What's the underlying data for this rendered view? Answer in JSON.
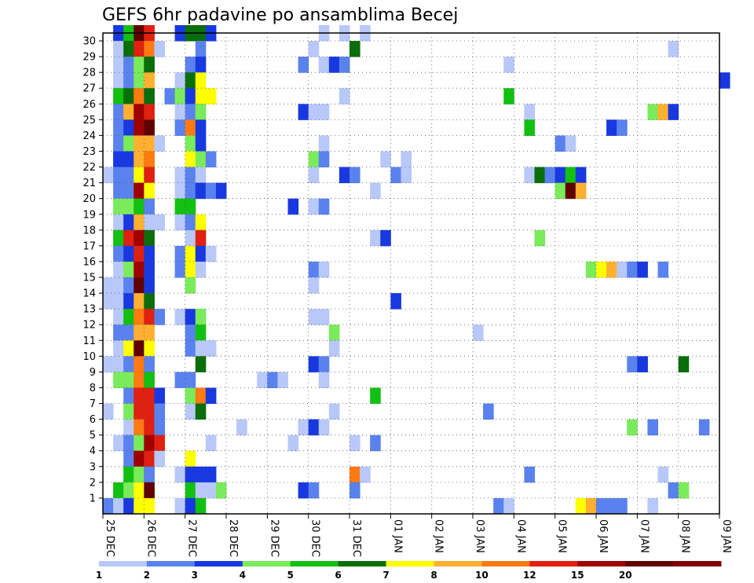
{
  "chart_data": {
    "type": "heatmap",
    "title": "GEFS 6hr padavine po ansamblima Becej",
    "xlabel": "",
    "ylabel": "",
    "x_ticks": [
      "25 DEC",
      "26 DEC",
      "27 DEC",
      "28 DEC",
      "29 DEC",
      "30 DEC",
      "31 DEC",
      "01 JAN",
      "02 JAN",
      "03 JAN",
      "04 JAN",
      "05 JAN",
      "06 JAN",
      "07 JAN",
      "08 JAN",
      "09 JAN"
    ],
    "y_ticks": [
      "1",
      "2",
      "3",
      "4",
      "5",
      "6",
      "7",
      "8",
      "9",
      "10",
      "11",
      "12",
      "13",
      "14",
      "15",
      "16",
      "17",
      "18",
      "19",
      "20",
      "21",
      "22",
      "23",
      "24",
      "25",
      "26",
      "27",
      "28",
      "29",
      "30"
    ],
    "xlim": [
      0,
      60
    ],
    "ylim": [
      0,
      30
    ],
    "grid": true,
    "colorbar": {
      "levels": [
        "1",
        "2",
        "3",
        "4",
        "5",
        "6",
        "7",
        "8",
        "10",
        "12",
        "15",
        "20"
      ],
      "colors": [
        "#b8c8f8",
        "#5a82ee",
        "#1838e0",
        "#7aeb5a",
        "#12c012",
        "#0a6e0a",
        "#ffff00",
        "#ffb030",
        "#ff7a10",
        "#e02010",
        "#a00000",
        "#600000",
        "#800008"
      ]
    },
    "cells": [
      [
        1,
        30,
        2
      ],
      [
        2,
        30,
        4
      ],
      [
        3,
        30,
        11
      ],
      [
        4,
        30,
        9
      ],
      [
        7,
        30,
        2
      ],
      [
        8,
        30,
        5
      ],
      [
        9,
        30,
        5
      ],
      [
        10,
        30,
        2
      ],
      [
        21,
        30,
        0
      ],
      [
        23,
        30,
        0
      ],
      [
        25,
        30,
        0
      ],
      [
        1,
        29,
        0
      ],
      [
        2,
        29,
        5
      ],
      [
        3,
        29,
        9
      ],
      [
        4,
        29,
        8
      ],
      [
        5,
        29,
        0
      ],
      [
        9,
        29,
        1
      ],
      [
        20,
        29,
        0
      ],
      [
        24,
        29,
        5
      ],
      [
        55,
        29,
        0
      ],
      [
        1,
        28,
        0
      ],
      [
        2,
        28,
        1
      ],
      [
        3,
        28,
        3
      ],
      [
        4,
        28,
        5
      ],
      [
        8,
        28,
        1
      ],
      [
        9,
        28,
        2
      ],
      [
        19,
        28,
        1
      ],
      [
        21,
        28,
        0
      ],
      [
        22,
        28,
        2
      ],
      [
        23,
        28,
        1
      ],
      [
        39,
        28,
        0
      ],
      [
        1,
        27,
        0
      ],
      [
        2,
        27,
        1
      ],
      [
        3,
        27,
        3
      ],
      [
        4,
        27,
        7
      ],
      [
        7,
        27,
        0
      ],
      [
        8,
        27,
        5
      ],
      [
        9,
        27,
        6
      ],
      [
        60,
        27,
        2
      ],
      [
        1,
        26,
        4
      ],
      [
        2,
        26,
        5
      ],
      [
        3,
        26,
        8
      ],
      [
        4,
        26,
        5
      ],
      [
        6,
        26,
        1
      ],
      [
        7,
        26,
        3
      ],
      [
        8,
        26,
        2
      ],
      [
        9,
        26,
        6
      ],
      [
        10,
        26,
        6
      ],
      [
        23,
        26,
        0
      ],
      [
        39,
        26,
        4
      ],
      [
        1,
        25,
        1
      ],
      [
        2,
        25,
        7
      ],
      [
        3,
        25,
        10
      ],
      [
        4,
        25,
        9
      ],
      [
        7,
        25,
        0
      ],
      [
        8,
        25,
        1
      ],
      [
        9,
        25,
        3
      ],
      [
        19,
        25,
        2
      ],
      [
        20,
        25,
        0
      ],
      [
        21,
        25,
        0
      ],
      [
        41,
        25,
        0
      ],
      [
        53,
        25,
        3
      ],
      [
        54,
        25,
        7
      ],
      [
        55,
        25,
        2
      ],
      [
        1,
        24,
        1
      ],
      [
        2,
        24,
        2
      ],
      [
        3,
        24,
        10
      ],
      [
        4,
        24,
        11
      ],
      [
        7,
        24,
        1
      ],
      [
        8,
        24,
        8
      ],
      [
        9,
        24,
        2
      ],
      [
        41,
        24,
        4
      ],
      [
        49,
        24,
        2
      ],
      [
        50,
        24,
        1
      ],
      [
        1,
        23,
        1
      ],
      [
        2,
        23,
        3
      ],
      [
        3,
        23,
        7
      ],
      [
        4,
        23,
        7
      ],
      [
        5,
        23,
        0
      ],
      [
        8,
        23,
        3
      ],
      [
        9,
        23,
        2
      ],
      [
        21,
        23,
        0
      ],
      [
        44,
        23,
        1
      ],
      [
        45,
        23,
        0
      ],
      [
        1,
        22,
        2
      ],
      [
        2,
        22,
        2
      ],
      [
        3,
        22,
        7
      ],
      [
        4,
        22,
        8
      ],
      [
        8,
        22,
        6
      ],
      [
        9,
        22,
        3
      ],
      [
        10,
        22,
        1
      ],
      [
        20,
        22,
        3
      ],
      [
        21,
        22,
        1
      ],
      [
        27,
        22,
        0
      ],
      [
        29,
        22,
        0
      ],
      [
        0,
        21,
        0
      ],
      [
        1,
        21,
        1
      ],
      [
        2,
        21,
        1
      ],
      [
        3,
        21,
        6
      ],
      [
        4,
        21,
        9
      ],
      [
        7,
        21,
        0
      ],
      [
        8,
        21,
        1
      ],
      [
        9,
        21,
        0
      ],
      [
        20,
        21,
        0
      ],
      [
        23,
        21,
        2
      ],
      [
        24,
        21,
        1
      ],
      [
        28,
        21,
        1
      ],
      [
        29,
        21,
        0
      ],
      [
        41,
        21,
        0
      ],
      [
        42,
        21,
        5
      ],
      [
        43,
        21,
        1
      ],
      [
        44,
        21,
        2
      ],
      [
        45,
        21,
        4
      ],
      [
        46,
        21,
        2
      ],
      [
        1,
        20,
        1
      ],
      [
        2,
        20,
        1
      ],
      [
        3,
        20,
        10
      ],
      [
        4,
        20,
        6
      ],
      [
        7,
        20,
        0
      ],
      [
        8,
        20,
        1
      ],
      [
        9,
        20,
        2
      ],
      [
        10,
        20,
        1
      ],
      [
        11,
        20,
        2
      ],
      [
        26,
        20,
        0
      ],
      [
        44,
        20,
        3
      ],
      [
        45,
        20,
        11
      ],
      [
        46,
        20,
        7
      ],
      [
        1,
        19,
        3
      ],
      [
        2,
        19,
        3
      ],
      [
        3,
        19,
        4
      ],
      [
        4,
        19,
        1
      ],
      [
        7,
        19,
        4
      ],
      [
        8,
        19,
        4
      ],
      [
        18,
        19,
        2
      ],
      [
        20,
        19,
        0
      ],
      [
        21,
        19,
        1
      ],
      [
        1,
        18,
        0
      ],
      [
        2,
        18,
        2
      ],
      [
        3,
        18,
        7
      ],
      [
        4,
        18,
        0
      ],
      [
        5,
        18,
        0
      ],
      [
        7,
        18,
        0
      ],
      [
        8,
        18,
        1
      ],
      [
        9,
        18,
        6
      ],
      [
        1,
        17,
        4
      ],
      [
        2,
        17,
        9
      ],
      [
        3,
        17,
        10
      ],
      [
        4,
        17,
        5
      ],
      [
        8,
        17,
        0
      ],
      [
        9,
        17,
        9
      ],
      [
        26,
        17,
        0
      ],
      [
        27,
        17,
        2
      ],
      [
        42,
        17,
        3
      ],
      [
        1,
        16,
        1
      ],
      [
        2,
        16,
        2
      ],
      [
        3,
        16,
        9
      ],
      [
        4,
        16,
        2
      ],
      [
        7,
        16,
        1
      ],
      [
        8,
        16,
        6
      ],
      [
        9,
        16,
        2
      ],
      [
        10,
        16,
        0
      ],
      [
        1,
        15,
        0
      ],
      [
        2,
        15,
        3
      ],
      [
        3,
        15,
        10
      ],
      [
        4,
        15,
        2
      ],
      [
        7,
        15,
        1
      ],
      [
        8,
        15,
        6
      ],
      [
        9,
        15,
        0
      ],
      [
        20,
        15,
        1
      ],
      [
        21,
        15,
        0
      ],
      [
        47,
        15,
        3
      ],
      [
        48,
        15,
        6
      ],
      [
        49,
        15,
        7
      ],
      [
        50,
        15,
        0
      ],
      [
        51,
        15,
        1
      ],
      [
        52,
        15,
        2
      ],
      [
        54,
        15,
        1
      ],
      [
        0,
        14,
        0
      ],
      [
        1,
        14,
        0
      ],
      [
        2,
        14,
        1
      ],
      [
        3,
        14,
        11
      ],
      [
        4,
        14,
        2
      ],
      [
        8,
        14,
        3
      ],
      [
        20,
        14,
        0
      ],
      [
        0,
        13,
        0
      ],
      [
        1,
        13,
        0
      ],
      [
        2,
        13,
        2
      ],
      [
        3,
        13,
        7
      ],
      [
        4,
        13,
        5
      ],
      [
        28,
        13,
        2
      ],
      [
        1,
        12,
        0
      ],
      [
        2,
        12,
        4
      ],
      [
        3,
        12,
        8
      ],
      [
        4,
        12,
        9
      ],
      [
        5,
        12,
        1
      ],
      [
        7,
        12,
        0
      ],
      [
        8,
        12,
        2
      ],
      [
        9,
        12,
        3
      ],
      [
        20,
        12,
        0
      ],
      [
        21,
        12,
        0
      ],
      [
        1,
        11,
        1
      ],
      [
        2,
        11,
        1
      ],
      [
        3,
        11,
        7
      ],
      [
        4,
        11,
        7
      ],
      [
        8,
        11,
        1
      ],
      [
        9,
        11,
        4
      ],
      [
        22,
        11,
        3
      ],
      [
        36,
        11,
        0
      ],
      [
        1,
        10,
        0
      ],
      [
        2,
        10,
        6
      ],
      [
        3,
        10,
        11
      ],
      [
        4,
        10,
        6
      ],
      [
        8,
        10,
        1
      ],
      [
        9,
        10,
        0
      ],
      [
        10,
        10,
        0
      ],
      [
        22,
        10,
        0
      ],
      [
        0,
        9,
        0
      ],
      [
        1,
        9,
        0
      ],
      [
        2,
        9,
        1
      ],
      [
        3,
        9,
        8
      ],
      [
        4,
        9,
        1
      ],
      [
        9,
        9,
        5
      ],
      [
        20,
        9,
        2
      ],
      [
        21,
        9,
        1
      ],
      [
        51,
        9,
        1
      ],
      [
        52,
        9,
        2
      ],
      [
        56,
        9,
        5
      ],
      [
        1,
        8,
        3
      ],
      [
        2,
        8,
        3
      ],
      [
        3,
        8,
        8
      ],
      [
        4,
        8,
        4
      ],
      [
        7,
        8,
        1
      ],
      [
        8,
        8,
        1
      ],
      [
        15,
        8,
        0
      ],
      [
        16,
        8,
        1
      ],
      [
        17,
        8,
        0
      ],
      [
        21,
        8,
        0
      ],
      [
        2,
        7,
        1
      ],
      [
        3,
        7,
        9
      ],
      [
        4,
        7,
        9
      ],
      [
        5,
        7,
        2
      ],
      [
        8,
        7,
        3
      ],
      [
        9,
        7,
        8
      ],
      [
        10,
        7,
        2
      ],
      [
        26,
        7,
        4
      ],
      [
        0,
        6,
        0
      ],
      [
        2,
        6,
        3
      ],
      [
        3,
        6,
        9
      ],
      [
        4,
        6,
        9
      ],
      [
        5,
        6,
        1
      ],
      [
        8,
        6,
        0
      ],
      [
        9,
        6,
        5
      ],
      [
        22,
        6,
        0
      ],
      [
        37,
        6,
        1
      ],
      [
        2,
        5,
        0
      ],
      [
        3,
        5,
        8
      ],
      [
        4,
        5,
        9
      ],
      [
        5,
        5,
        1
      ],
      [
        13,
        5,
        0
      ],
      [
        19,
        5,
        0
      ],
      [
        20,
        5,
        2
      ],
      [
        21,
        5,
        0
      ],
      [
        51,
        5,
        3
      ],
      [
        53,
        5,
        1
      ],
      [
        58,
        5,
        1
      ],
      [
        1,
        4,
        0
      ],
      [
        2,
        4,
        1
      ],
      [
        3,
        4,
        3
      ],
      [
        4,
        4,
        10
      ],
      [
        5,
        4,
        9
      ],
      [
        10,
        4,
        0
      ],
      [
        18,
        4,
        0
      ],
      [
        24,
        4,
        0
      ],
      [
        26,
        4,
        1
      ],
      [
        2,
        3,
        1
      ],
      [
        3,
        3,
        10
      ],
      [
        4,
        3,
        9
      ],
      [
        5,
        3,
        0
      ],
      [
        8,
        3,
        6
      ],
      [
        2,
        2,
        4
      ],
      [
        3,
        2,
        3
      ],
      [
        4,
        2,
        1
      ],
      [
        7,
        2,
        0
      ],
      [
        8,
        2,
        2
      ],
      [
        9,
        2,
        2
      ],
      [
        10,
        2,
        2
      ],
      [
        24,
        2,
        8
      ],
      [
        25,
        2,
        0
      ],
      [
        41,
        2,
        1
      ],
      [
        54,
        2,
        0
      ],
      [
        1,
        1,
        4
      ],
      [
        2,
        1,
        3
      ],
      [
        3,
        1,
        6
      ],
      [
        4,
        1,
        11
      ],
      [
        8,
        1,
        4
      ],
      [
        9,
        1,
        0
      ],
      [
        10,
        1,
        0
      ],
      [
        11,
        1,
        3
      ],
      [
        19,
        1,
        2
      ],
      [
        20,
        1,
        1
      ],
      [
        24,
        1,
        1
      ],
      [
        55,
        1,
        1
      ],
      [
        56,
        1,
        3
      ],
      [
        0,
        0,
        1
      ],
      [
        1,
        0,
        0
      ],
      [
        2,
        0,
        2
      ],
      [
        3,
        0,
        6
      ],
      [
        4,
        0,
        6
      ],
      [
        7,
        0,
        0
      ],
      [
        8,
        0,
        2
      ],
      [
        9,
        0,
        4
      ],
      [
        38,
        0,
        1
      ],
      [
        39,
        0,
        0
      ],
      [
        46,
        0,
        6
      ],
      [
        47,
        0,
        7
      ],
      [
        48,
        0,
        1
      ],
      [
        49,
        0,
        1
      ],
      [
        50,
        0,
        1
      ],
      [
        53,
        0,
        0
      ]
    ]
  }
}
